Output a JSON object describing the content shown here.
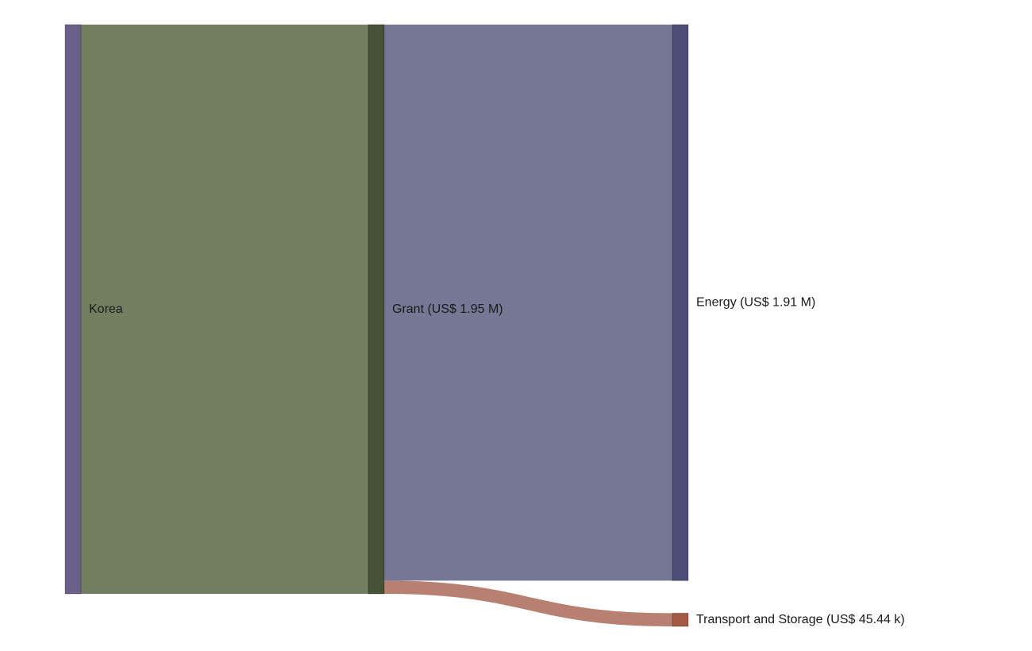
{
  "chart_data": {
    "type": "sankey",
    "nodes": [
      {
        "id": "korea",
        "label": "Korea",
        "color": "#6b6188",
        "column": 0
      },
      {
        "id": "grant",
        "label": "Grant (US$ 1.95 M)",
        "color": "#465236",
        "column": 1
      },
      {
        "id": "energy",
        "label": "Energy (US$ 1.91 M)",
        "color": "#4d4c76",
        "column": 2
      },
      {
        "id": "transport",
        "label": "Transport and Storage (US$ 45.44 k)",
        "color": "#a45a44",
        "column": 2
      }
    ],
    "links": [
      {
        "source": "korea",
        "target": "grant",
        "value": 1955440,
        "color": "#737d60"
      },
      {
        "source": "grant",
        "target": "energy",
        "value": 1910000,
        "color": "#757795"
      },
      {
        "source": "grant",
        "target": "transport",
        "value": 45440,
        "color": "#b88070"
      }
    ]
  }
}
